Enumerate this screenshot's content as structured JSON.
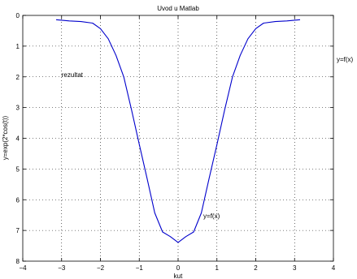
{
  "chart_data": {
    "type": "line",
    "title": "Uvod u Matlab",
    "xlabel": "kut",
    "ylabel": "y=exp(2*cos(t))",
    "xlim": [
      -4,
      4
    ],
    "ylim": [
      0,
      8
    ],
    "y_reversed": true,
    "grid": true,
    "xticks": [
      -4,
      -3,
      -2,
      -1,
      0,
      1,
      2,
      3,
      4
    ],
    "yticks": [
      0,
      1,
      2,
      3,
      4,
      5,
      6,
      7,
      8
    ],
    "xtick_labels": [
      "−4",
      "−3",
      "−2",
      "−1",
      "0",
      "1",
      "2",
      "3",
      "4"
    ],
    "ytick_labels": [
      "0",
      "1",
      "2",
      "3",
      "4",
      "5",
      "6",
      "7",
      "8"
    ],
    "series": [
      {
        "color": "#0000cc",
        "x": [
          -3.1416,
          -2.8,
          -2.5,
          -2.2,
          -2.0,
          -1.8,
          -1.6,
          -1.4,
          -1.2,
          -1.0,
          -0.8,
          -0.6,
          -0.4,
          -0.2,
          0.0,
          0.2,
          0.4,
          0.6,
          0.8,
          1.0,
          1.2,
          1.4,
          1.6,
          1.8,
          2.0,
          2.2,
          2.5,
          2.8,
          3.1416
        ],
        "y": [
          0.14,
          0.18,
          0.2,
          0.25,
          0.43,
          0.76,
          1.3,
          2.0,
          3.07,
          4.2,
          5.3,
          6.43,
          7.05,
          7.2,
          7.39,
          7.2,
          7.05,
          6.43,
          5.3,
          4.2,
          3.07,
          2.0,
          1.3,
          0.76,
          0.43,
          0.25,
          0.2,
          0.18,
          0.14
        ]
      }
    ],
    "annotations": [
      {
        "text": "rezultat",
        "x": -3.0,
        "y": 2.0
      },
      {
        "text": "y=f(x)",
        "x": 0.65,
        "y": 6.6
      }
    ],
    "outside_label": "y=f(x)"
  }
}
